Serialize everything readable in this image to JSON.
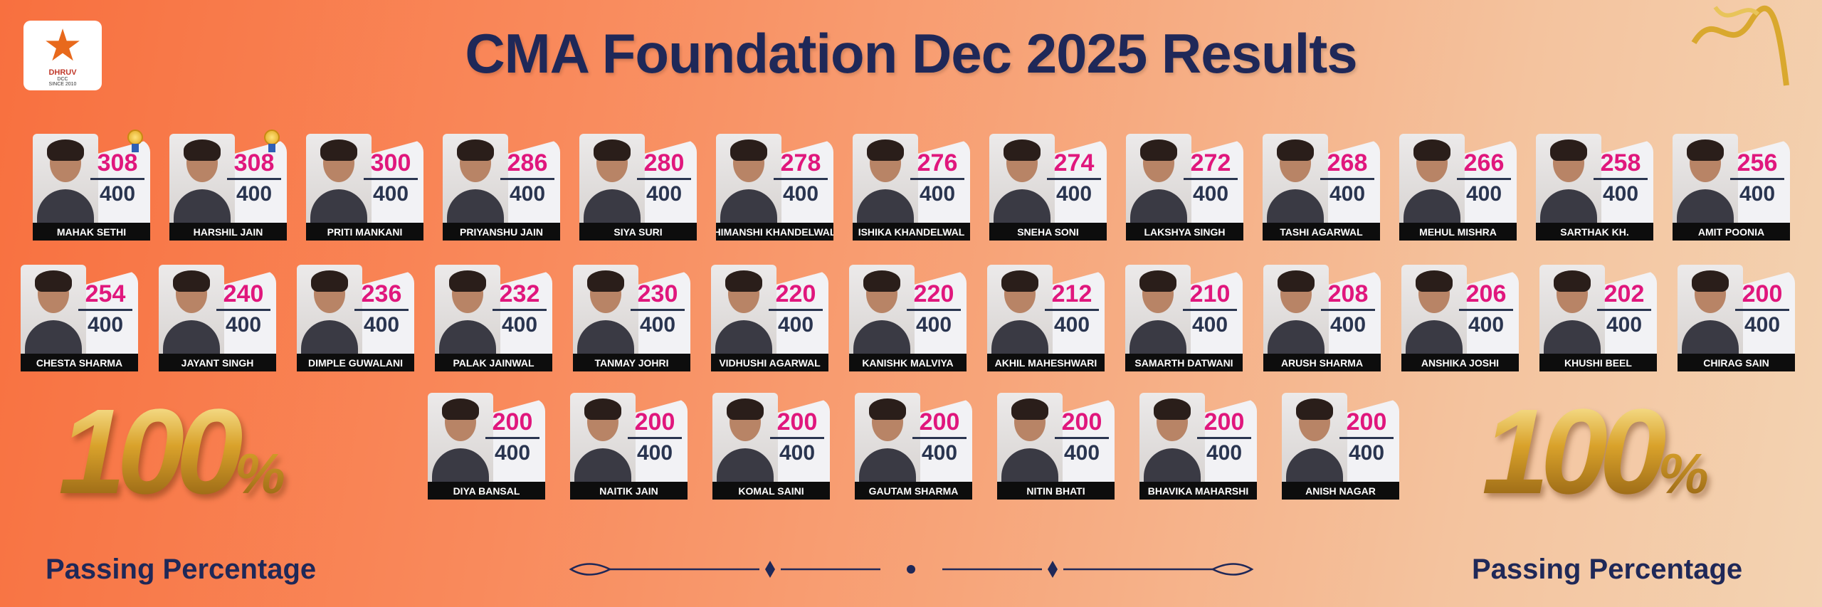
{
  "logo": {
    "text": "DHRUV",
    "sub": "DCC",
    "since": "SINCE 2010"
  },
  "title": "CMA Foundation Dec 2025 Results",
  "total": "400",
  "colors": {
    "score": "#e0177d",
    "title": "#1f2858",
    "name_bar": "#0d0d0d"
  },
  "rows": [
    [
      {
        "name": "MAHAK SETHI",
        "score": "308",
        "medal": true
      },
      {
        "name": "HARSHIL JAIN",
        "score": "308",
        "medal": true
      },
      {
        "name": "PRITI MANKANI",
        "score": "300"
      },
      {
        "name": "PRIYANSHU JAIN",
        "score": "286"
      },
      {
        "name": "SIYA SURI",
        "score": "280"
      },
      {
        "name": "HIMANSHI KHANDELWAL",
        "score": "278"
      },
      {
        "name": "ISHIKA KHANDELWAL",
        "score": "276"
      },
      {
        "name": "SNEHA SONI",
        "score": "274"
      },
      {
        "name": "LAKSHYA SINGH",
        "score": "272"
      },
      {
        "name": "TASHI AGARWAL",
        "score": "268"
      },
      {
        "name": "MEHUL MISHRA",
        "score": "266"
      },
      {
        "name": "SARTHAK KH.",
        "score": "258"
      },
      {
        "name": "AMIT POONIA",
        "score": "256"
      }
    ],
    [
      {
        "name": "CHESTA SHARMA",
        "score": "254"
      },
      {
        "name": "JAYANT SINGH",
        "score": "240"
      },
      {
        "name": "DIMPLE GUWALANI",
        "score": "236"
      },
      {
        "name": "PALAK JAINWAL",
        "score": "232"
      },
      {
        "name": "TANMAY JOHRI",
        "score": "230"
      },
      {
        "name": "VIDHUSHI AGARWAL",
        "score": "220"
      },
      {
        "name": "KANISHK MALVIYA",
        "score": "220"
      },
      {
        "name": "AKHIL MAHESHWARI",
        "score": "212"
      },
      {
        "name": "SAMARTH DATWANI",
        "score": "210"
      },
      {
        "name": "ARUSH SHARMA",
        "score": "208"
      },
      {
        "name": "ANSHIKA JOSHI",
        "score": "206"
      },
      {
        "name": "KHUSHI BEEL",
        "score": "202"
      },
      {
        "name": "CHIRAG SAIN",
        "score": "200"
      }
    ],
    [
      {
        "name": "DIYA BANSAL",
        "score": "200"
      },
      {
        "name": "NAITIK JAIN",
        "score": "200"
      },
      {
        "name": "KOMAL SAINI",
        "score": "200"
      },
      {
        "name": "GAUTAM SHARMA",
        "score": "200"
      },
      {
        "name": "NITIN BHATI",
        "score": "200"
      },
      {
        "name": "BHAVIKA MAHARSHI",
        "score": "200"
      },
      {
        "name": "ANISH NAGAR",
        "score": "200"
      }
    ]
  ],
  "badge": {
    "number": "100",
    "percent": "%",
    "label": "Passing Percentage"
  }
}
